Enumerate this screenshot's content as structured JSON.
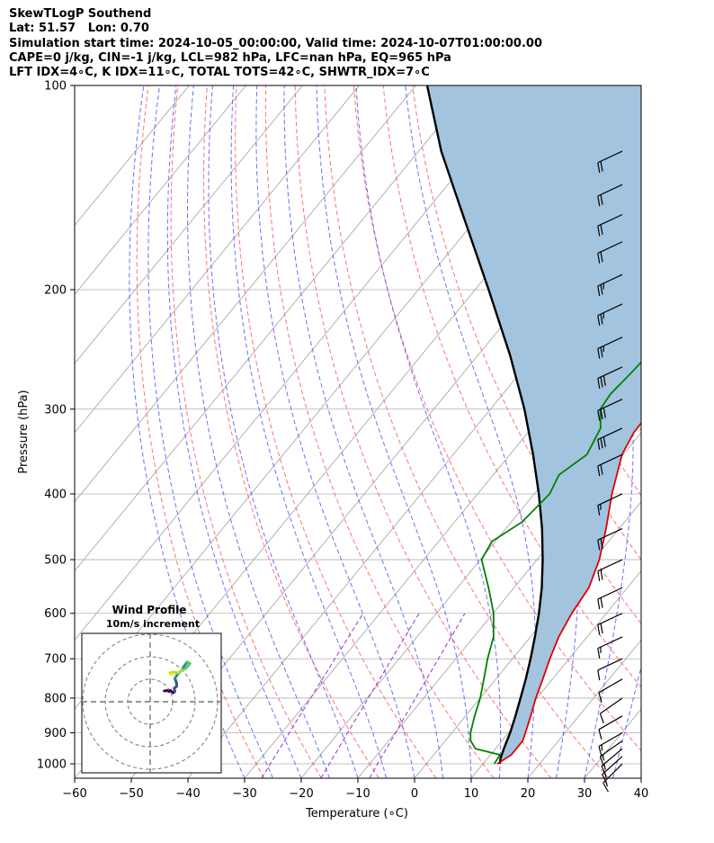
{
  "header": {
    "title": "SkewTLogP Southend",
    "location": "Lat: 51.57   Lon: 0.70",
    "times": "Simulation start time: 2024-10-05_00:00:00, Valid time: 2024-10-07T01:00:00.00",
    "indices1": "CAPE=0 j/kg, CIN=-1 j/kg, LCL=982 hPa, LFC=nan hPa, EQ=965 hPa",
    "indices2": "LFT IDX=4∘C, K IDX=11∘C, TOTAL TOTS=42∘C, SHWTR_IDX=7∘C"
  },
  "chart_data": {
    "type": "skewt",
    "xlabel": "Temperature (∘C)",
    "ylabel": "Pressure (hPa)",
    "xlim": [
      -60,
      40
    ],
    "ylim": [
      1050,
      100
    ],
    "pressure_scale": "log",
    "x_ticks": [
      -60,
      -50,
      -40,
      -30,
      -20,
      -10,
      0,
      10,
      20,
      30,
      40
    ],
    "y_ticks": [
      1000,
      900,
      800,
      700,
      600,
      500,
      400,
      300,
      200,
      100
    ],
    "grid": "on",
    "colors": {
      "temperature": "#e00000",
      "dewpoint": "#008000",
      "parcel": "#000000",
      "shading": "#a2c4df",
      "dry_adiabats": "#ff5a5a",
      "moist_adiabats": "#4a4aff",
      "mixing_ratio": "#9932cc",
      "isotherms": "#a0a0a0",
      "barbs": "#000000"
    },
    "temperature_profile": [
      [
        1000,
        12.5
      ],
      [
        970,
        13.7
      ],
      [
        925,
        13.7
      ],
      [
        900,
        13.0
      ],
      [
        850,
        11.5
      ],
      [
        800,
        9.8
      ],
      [
        750,
        8.3
      ],
      [
        700,
        6.6
      ],
      [
        650,
        5.0
      ],
      [
        600,
        3.9
      ],
      [
        550,
        3.2
      ],
      [
        500,
        1.0
      ],
      [
        450,
        -2.3
      ],
      [
        400,
        -6.3
      ],
      [
        350,
        -10.2
      ],
      [
        325,
        -11.3
      ],
      [
        300,
        -11.5
      ],
      [
        280,
        -11.2
      ],
      [
        250,
        -10.0
      ],
      [
        230,
        -8.5
      ],
      [
        200,
        -6.6
      ],
      [
        180,
        -5.5
      ],
      [
        160,
        -5.0
      ],
      [
        150,
        -5.0
      ],
      [
        140,
        -4.7
      ],
      [
        125,
        -3.4
      ],
      [
        115,
        -2.1
      ],
      [
        108,
        -0.9
      ],
      [
        100,
        0.4
      ]
    ],
    "dewpoint_profile": [
      [
        1000,
        12.0
      ],
      [
        970,
        11.7
      ],
      [
        950,
        6.5
      ],
      [
        925,
        4.5
      ],
      [
        900,
        3.3
      ],
      [
        850,
        1.6
      ],
      [
        800,
        0.0
      ],
      [
        750,
        -2.1
      ],
      [
        700,
        -4.4
      ],
      [
        650,
        -6.5
      ],
      [
        600,
        -9.9
      ],
      [
        550,
        -14.5
      ],
      [
        500,
        -19.8
      ],
      [
        470,
        -20.6
      ],
      [
        440,
        -18.1
      ],
      [
        400,
        -17.3
      ],
      [
        375,
        -18.4
      ],
      [
        350,
        -16.4
      ],
      [
        320,
        -17.8
      ],
      [
        300,
        -20.6
      ],
      [
        285,
        -21.0
      ],
      [
        265,
        -20.4
      ],
      [
        240,
        -19.8
      ],
      [
        220,
        -20.9
      ],
      [
        200,
        -22.7
      ],
      [
        185,
        -25.5
      ],
      [
        170,
        -25.2
      ],
      [
        150,
        -23.8
      ],
      [
        140,
        -22.3
      ],
      [
        130,
        -20.4
      ],
      [
        120,
        -17.1
      ],
      [
        110,
        -14.0
      ],
      [
        100,
        -11.0
      ]
    ],
    "parcel_profile": [
      [
        1000,
        13.0
      ],
      [
        982,
        12.3
      ],
      [
        950,
        11.5
      ],
      [
        900,
        10.3
      ],
      [
        850,
        8.8
      ],
      [
        800,
        7.1
      ],
      [
        750,
        5.3
      ],
      [
        700,
        3.2
      ],
      [
        650,
        0.8
      ],
      [
        600,
        -1.9
      ],
      [
        550,
        -5.1
      ],
      [
        500,
        -9.0
      ],
      [
        450,
        -13.6
      ],
      [
        400,
        -19.2
      ],
      [
        350,
        -25.9
      ],
      [
        300,
        -34.0
      ],
      [
        250,
        -44.3
      ],
      [
        200,
        -57.6
      ],
      [
        150,
        -75.0
      ],
      [
        125,
        -86.0
      ],
      [
        100,
        -98.0
      ]
    ],
    "wind_barbs": [
      {
        "p": 1000,
        "speed_kt": 15,
        "dir_deg": 225
      },
      {
        "p": 975,
        "speed_kt": 15,
        "dir_deg": 228
      },
      {
        "p": 950,
        "speed_kt": 15,
        "dir_deg": 230
      },
      {
        "p": 925,
        "speed_kt": 15,
        "dir_deg": 235
      },
      {
        "p": 900,
        "speed_kt": 15,
        "dir_deg": 240
      },
      {
        "p": 850,
        "speed_kt": 10,
        "dir_deg": 240
      },
      {
        "p": 800,
        "speed_kt": 10,
        "dir_deg": 235
      },
      {
        "p": 750,
        "speed_kt": 10,
        "dir_deg": 240
      },
      {
        "p": 700,
        "speed_kt": 10,
        "dir_deg": 245
      },
      {
        "p": 650,
        "speed_kt": 15,
        "dir_deg": 245
      },
      {
        "p": 600,
        "speed_kt": 20,
        "dir_deg": 245
      },
      {
        "p": 550,
        "speed_kt": 20,
        "dir_deg": 245
      },
      {
        "p": 500,
        "speed_kt": 20,
        "dir_deg": 245
      },
      {
        "p": 450,
        "speed_kt": 20,
        "dir_deg": 245
      },
      {
        "p": 400,
        "speed_kt": 15,
        "dir_deg": 245
      },
      {
        "p": 350,
        "speed_kt": 20,
        "dir_deg": 245
      },
      {
        "p": 320,
        "speed_kt": 30,
        "dir_deg": 245
      },
      {
        "p": 290,
        "speed_kt": 30,
        "dir_deg": 245
      },
      {
        "p": 260,
        "speed_kt": 30,
        "dir_deg": 245
      },
      {
        "p": 235,
        "speed_kt": 25,
        "dir_deg": 245
      },
      {
        "p": 210,
        "speed_kt": 25,
        "dir_deg": 245
      },
      {
        "p": 190,
        "speed_kt": 25,
        "dir_deg": 245
      },
      {
        "p": 170,
        "speed_kt": 20,
        "dir_deg": 245
      },
      {
        "p": 155,
        "speed_kt": 20,
        "dir_deg": 245
      },
      {
        "p": 140,
        "speed_kt": 20,
        "dir_deg": 245
      },
      {
        "p": 125,
        "speed_kt": 20,
        "dir_deg": 245
      }
    ],
    "hodograph": {
      "title": "Wind Profile",
      "subtitle": "10m/s increment",
      "ring_speeds": [
        10,
        20,
        30
      ],
      "uv_path": [
        [
          6.3,
          4.8
        ],
        [
          7.5,
          5.0
        ],
        [
          8.4,
          4.6
        ],
        [
          9.0,
          5.0
        ],
        [
          10.2,
          4.0
        ],
        [
          11.0,
          4.6
        ],
        [
          10.7,
          6.0
        ],
        [
          11.8,
          6.9
        ],
        [
          11.7,
          8.5
        ],
        [
          11.0,
          10.3
        ],
        [
          12.0,
          12.0
        ],
        [
          14.0,
          14.0
        ],
        [
          15.0,
          15.7
        ],
        [
          16.5,
          17.7
        ],
        [
          17.7,
          17.0
        ],
        [
          16.5,
          15.5
        ],
        [
          15.5,
          14.7
        ],
        [
          14.0,
          14.0
        ],
        [
          12.4,
          12.8
        ],
        [
          10.5,
          13.2
        ],
        [
          8.8,
          12.8
        ],
        [
          9.0,
          12.2
        ],
        [
          10.0,
          12.0
        ]
      ]
    }
  }
}
